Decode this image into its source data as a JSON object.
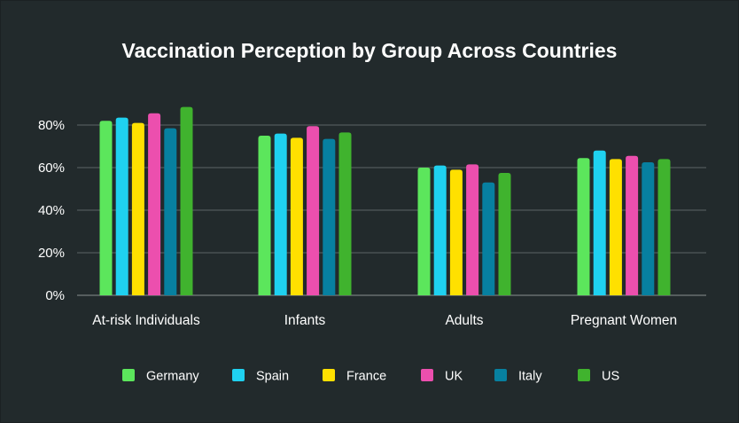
{
  "chart_data": {
    "type": "bar",
    "title": "Vaccination Perception by Group Across Countries",
    "xlabel": "",
    "ylabel": "",
    "ylim": [
      0,
      100
    ],
    "yticks": [
      0,
      20,
      40,
      60,
      80
    ],
    "ytick_labels": [
      "0%",
      "20%",
      "40%",
      "60%",
      "80%"
    ],
    "grid": true,
    "legend_position": "bottom",
    "categories": [
      "At-risk Individuals",
      "Infants",
      "Adults",
      "Pregnant Women"
    ],
    "series": [
      {
        "name": "Germany",
        "color": "#5ce65c",
        "values": [
          82,
          75,
          60,
          64.5
        ]
      },
      {
        "name": "Spain",
        "color": "#1fd1f0",
        "values": [
          83.5,
          76,
          61,
          68
        ]
      },
      {
        "name": "France",
        "color": "#ffe000",
        "values": [
          81,
          74,
          59,
          64
        ]
      },
      {
        "name": "UK",
        "color": "#ec4fae",
        "values": [
          85.5,
          79.5,
          61.5,
          65.5
        ]
      },
      {
        "name": "Italy",
        "color": "#0780a0",
        "values": [
          78.5,
          73.5,
          53,
          62.5
        ]
      },
      {
        "name": "US",
        "color": "#40b32e",
        "values": [
          88.5,
          76.5,
          57.5,
          64
        ]
      }
    ]
  }
}
